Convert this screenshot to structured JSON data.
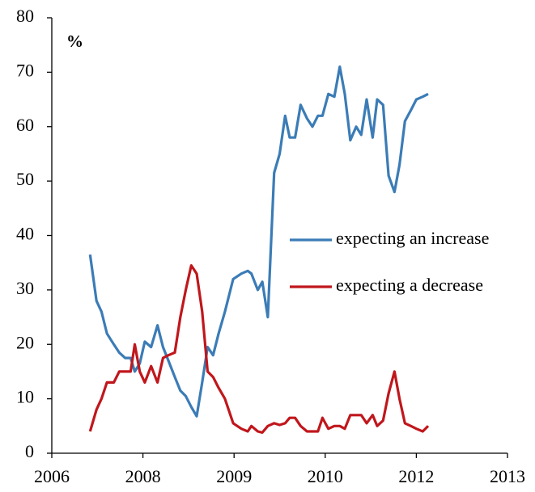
{
  "chart_data": {
    "type": "line",
    "y_label": "%",
    "x": [
      2006.84,
      2006.98,
      2007.09,
      2007.21,
      2007.36,
      2007.48,
      2007.61,
      2007.73,
      2007.82,
      2007.93,
      2008.02,
      2008.09,
      2008.16,
      2008.22,
      2008.28,
      2008.35,
      2008.41,
      2008.47,
      2008.53,
      2008.59,
      2008.65,
      2008.71,
      2008.77,
      2008.83,
      2008.9,
      2008.99,
      2009.08,
      2009.15,
      2009.19,
      2009.26,
      2009.31,
      2009.37,
      2009.44,
      2009.5,
      2009.56,
      2009.61,
      2009.67,
      2009.73,
      2009.8,
      2009.86,
      2009.92,
      2009.97,
      2010.07,
      2010.2,
      2010.32,
      2010.43,
      2010.55,
      2010.68,
      2010.79,
      2010.91,
      2011.04,
      2011.14,
      2011.27,
      2011.39,
      2011.52,
      2011.63,
      2011.75,
      2011.88,
      2012.0,
      2012.07,
      2012.13
    ],
    "series": [
      {
        "name": "expecting an increase",
        "color": "#3b7cb6",
        "values": [
          36.5,
          28,
          26,
          22,
          20,
          18.5,
          17.5,
          17.5,
          15,
          16.5,
          20.5,
          19.5,
          23.5,
          19.5,
          17,
          14,
          11.5,
          10.5,
          8.5,
          6.8,
          13,
          19.5,
          18,
          22,
          26,
          32,
          33,
          33.5,
          33,
          30,
          31.5,
          25,
          51.5,
          55,
          62,
          58,
          58,
          64,
          61.5,
          60,
          62,
          62,
          66,
          65.5,
          71,
          66,
          57.5,
          60,
          58.5,
          65,
          58,
          65,
          64,
          51,
          48,
          53,
          61,
          63,
          65,
          65.5,
          66
        ]
      },
      {
        "name": "expecting a decrease",
        "color": "#c0171c",
        "values": [
          4,
          8,
          10,
          13,
          13,
          15,
          15,
          15,
          20,
          15,
          13,
          16,
          13,
          17.5,
          18,
          18.5,
          25,
          30,
          34.5,
          33,
          26,
          15,
          14,
          12,
          10,
          5.5,
          4.5,
          4,
          5,
          4,
          3.8,
          5,
          5.5,
          5.2,
          5.5,
          6.5,
          6.5,
          5,
          4,
          4,
          4,
          6.5,
          4.5,
          5,
          5,
          4.5,
          7,
          7,
          7,
          5.5,
          7,
          5,
          6,
          11,
          15,
          10,
          5.5,
          5,
          4.5,
          4,
          5
        ]
      }
    ],
    "xlim": [
      2006,
      2013
    ],
    "xticks": [
      2006,
      2008,
      2009,
      2010,
      2012,
      2013
    ],
    "ylim": [
      0,
      80
    ],
    "yticks": [
      0,
      10,
      20,
      30,
      40,
      50,
      60,
      70,
      80
    ]
  }
}
